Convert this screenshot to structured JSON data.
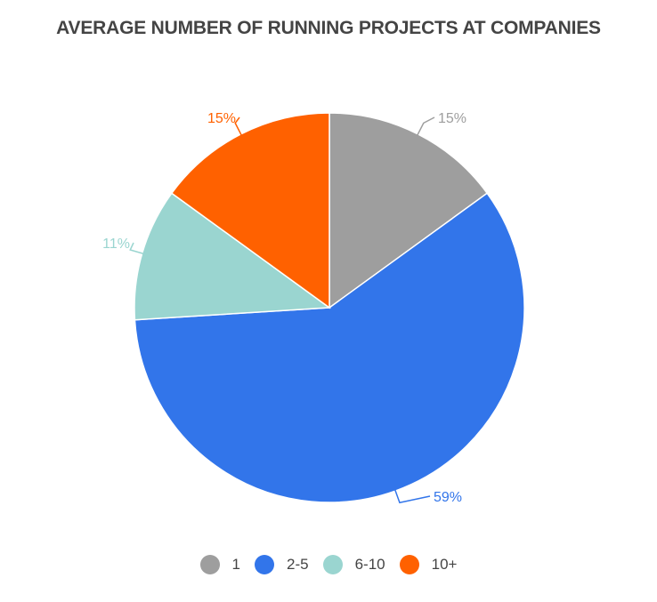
{
  "chart_data": {
    "type": "pie",
    "title": "AVERAGE NUMBER OF RUNNING PROJECTS AT COMPANIES",
    "categories": [
      "1",
      "2-5",
      "6-10",
      "10+"
    ],
    "values": [
      15,
      59,
      11,
      15
    ],
    "labels": [
      "15%",
      "59%",
      "11%",
      "15%"
    ],
    "colors": [
      "#9e9e9e",
      "#3275ea",
      "#9ad5d0",
      "#ff6100"
    ],
    "legend": "bottom"
  }
}
